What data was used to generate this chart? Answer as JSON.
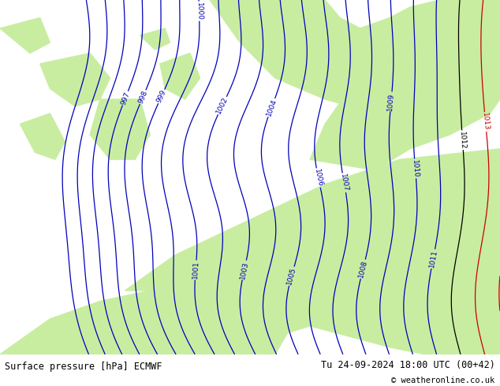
{
  "title_left": "Surface pressure [hPa] ECMWF",
  "title_right": "Tu 24-09-2024 18:00 UTC (00+42)",
  "copyright": "© weatheronline.co.uk",
  "bg_green": "#c8eda0",
  "bg_gray": "#c0c0c0",
  "contour_color_blue": "#0000bb",
  "contour_color_black": "#000000",
  "contour_color_red": "#cc0000",
  "figsize": [
    6.34,
    4.9
  ],
  "dpi": 100,
  "pressure_min": 994,
  "pressure_max": 1015,
  "bottom_bar_color": "#d8d8d8",
  "text_color": "#000000"
}
